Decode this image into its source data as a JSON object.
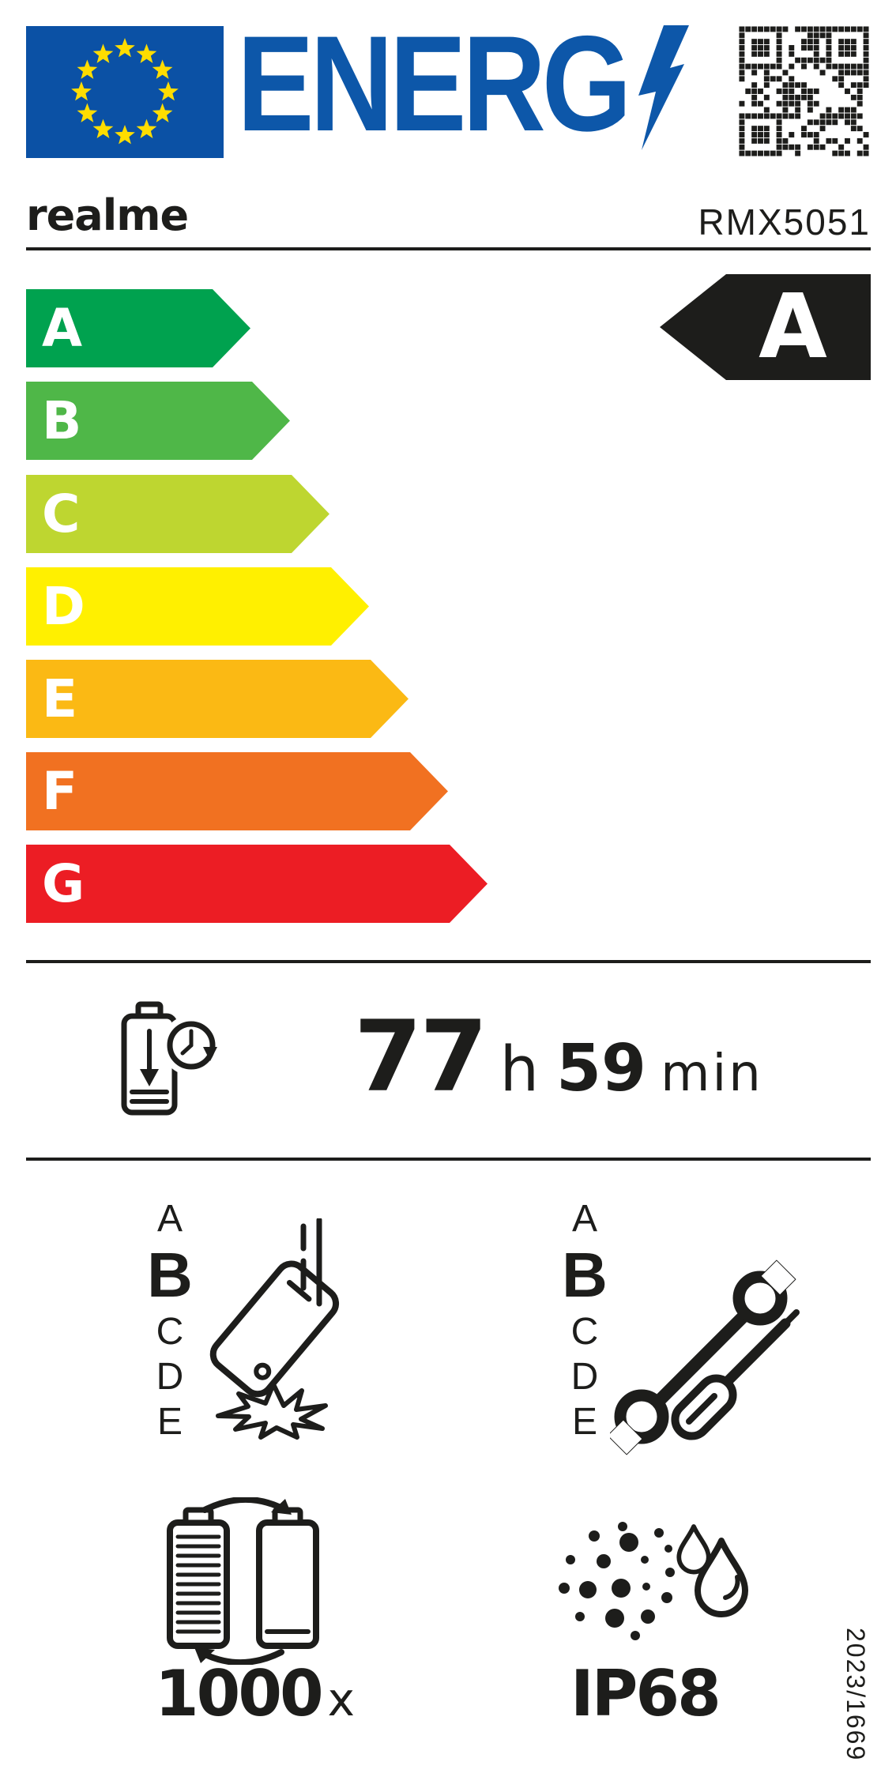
{
  "header": {
    "logo_text": "ENERG"
  },
  "brand": {
    "name": "realme",
    "model": "RMX5051"
  },
  "energy_scale": {
    "classes": [
      {
        "label": "A",
        "color": "#00A24F"
      },
      {
        "label": "B",
        "color": "#4FB748"
      },
      {
        "label": "C",
        "color": "#BED630"
      },
      {
        "label": "D",
        "color": "#FFF000"
      },
      {
        "label": "E",
        "color": "#FBB914"
      },
      {
        "label": "F",
        "color": "#F17121"
      },
      {
        "label": "G",
        "color": "#EC1D24"
      }
    ],
    "rated_class": "A"
  },
  "battery_endurance": {
    "hours": "77",
    "hours_unit": "h",
    "minutes": "59",
    "minutes_unit": "min"
  },
  "free_fall_class": {
    "scale": [
      "A",
      "B",
      "C",
      "D",
      "E"
    ],
    "selected": "B"
  },
  "repairability_class": {
    "scale": [
      "A",
      "B",
      "C",
      "D",
      "E"
    ],
    "selected": "B"
  },
  "battery_cycles": {
    "value": "1000",
    "unit": "x"
  },
  "ip_rating": {
    "value": "IP68"
  },
  "regulation_number": "2023/1669",
  "colors": {
    "ink": "#1D1D1B",
    "blue": "#0D57A9",
    "flag_blue": "#0B51A5",
    "star_yellow": "#FFDD00"
  }
}
